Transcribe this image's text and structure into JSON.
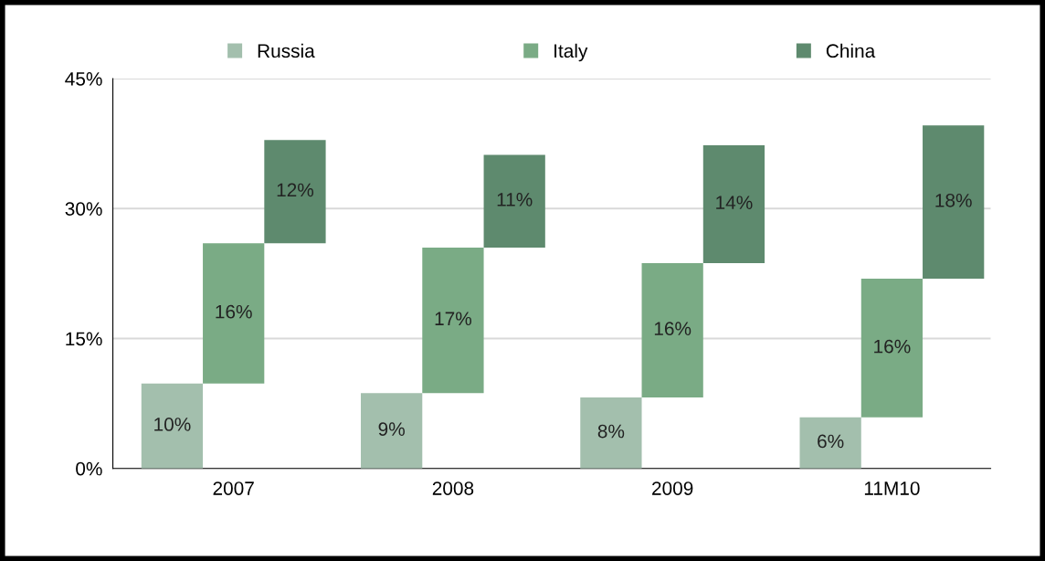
{
  "chart_data": {
    "type": "bar",
    "categories": [
      "2007",
      "2008",
      "2009",
      "11M10"
    ],
    "series": [
      {
        "name": "Russia",
        "color": "#a3bfad",
        "values": [
          9.8,
          8.7,
          8.2,
          5.9
        ],
        "base": [
          0,
          0,
          0,
          0
        ],
        "value_labels": [
          "10%",
          "9%",
          "8%",
          "6%"
        ]
      },
      {
        "name": "Italy",
        "color": "#7aab85",
        "values": [
          16.2,
          16.8,
          15.5,
          16.0
        ],
        "base": [
          9.8,
          8.7,
          8.2,
          5.9
        ],
        "value_labels": [
          "16%",
          "17%",
          "16%",
          "16%"
        ]
      },
      {
        "name": "China",
        "color": "#5e8a6e",
        "values": [
          11.9,
          10.7,
          13.6,
          17.7
        ],
        "base": [
          26.0,
          25.5,
          23.7,
          21.9
        ],
        "value_labels": [
          "12%",
          "11%",
          "14%",
          "18%"
        ]
      }
    ],
    "ylim": [
      0,
      45
    ],
    "yticks": [
      {
        "value": 0,
        "label": "0%"
      },
      {
        "value": 15,
        "label": "15%"
      },
      {
        "value": 30,
        "label": "30%"
      },
      {
        "value": 45,
        "label": "45%"
      }
    ],
    "grid": "y",
    "legend": "top"
  }
}
